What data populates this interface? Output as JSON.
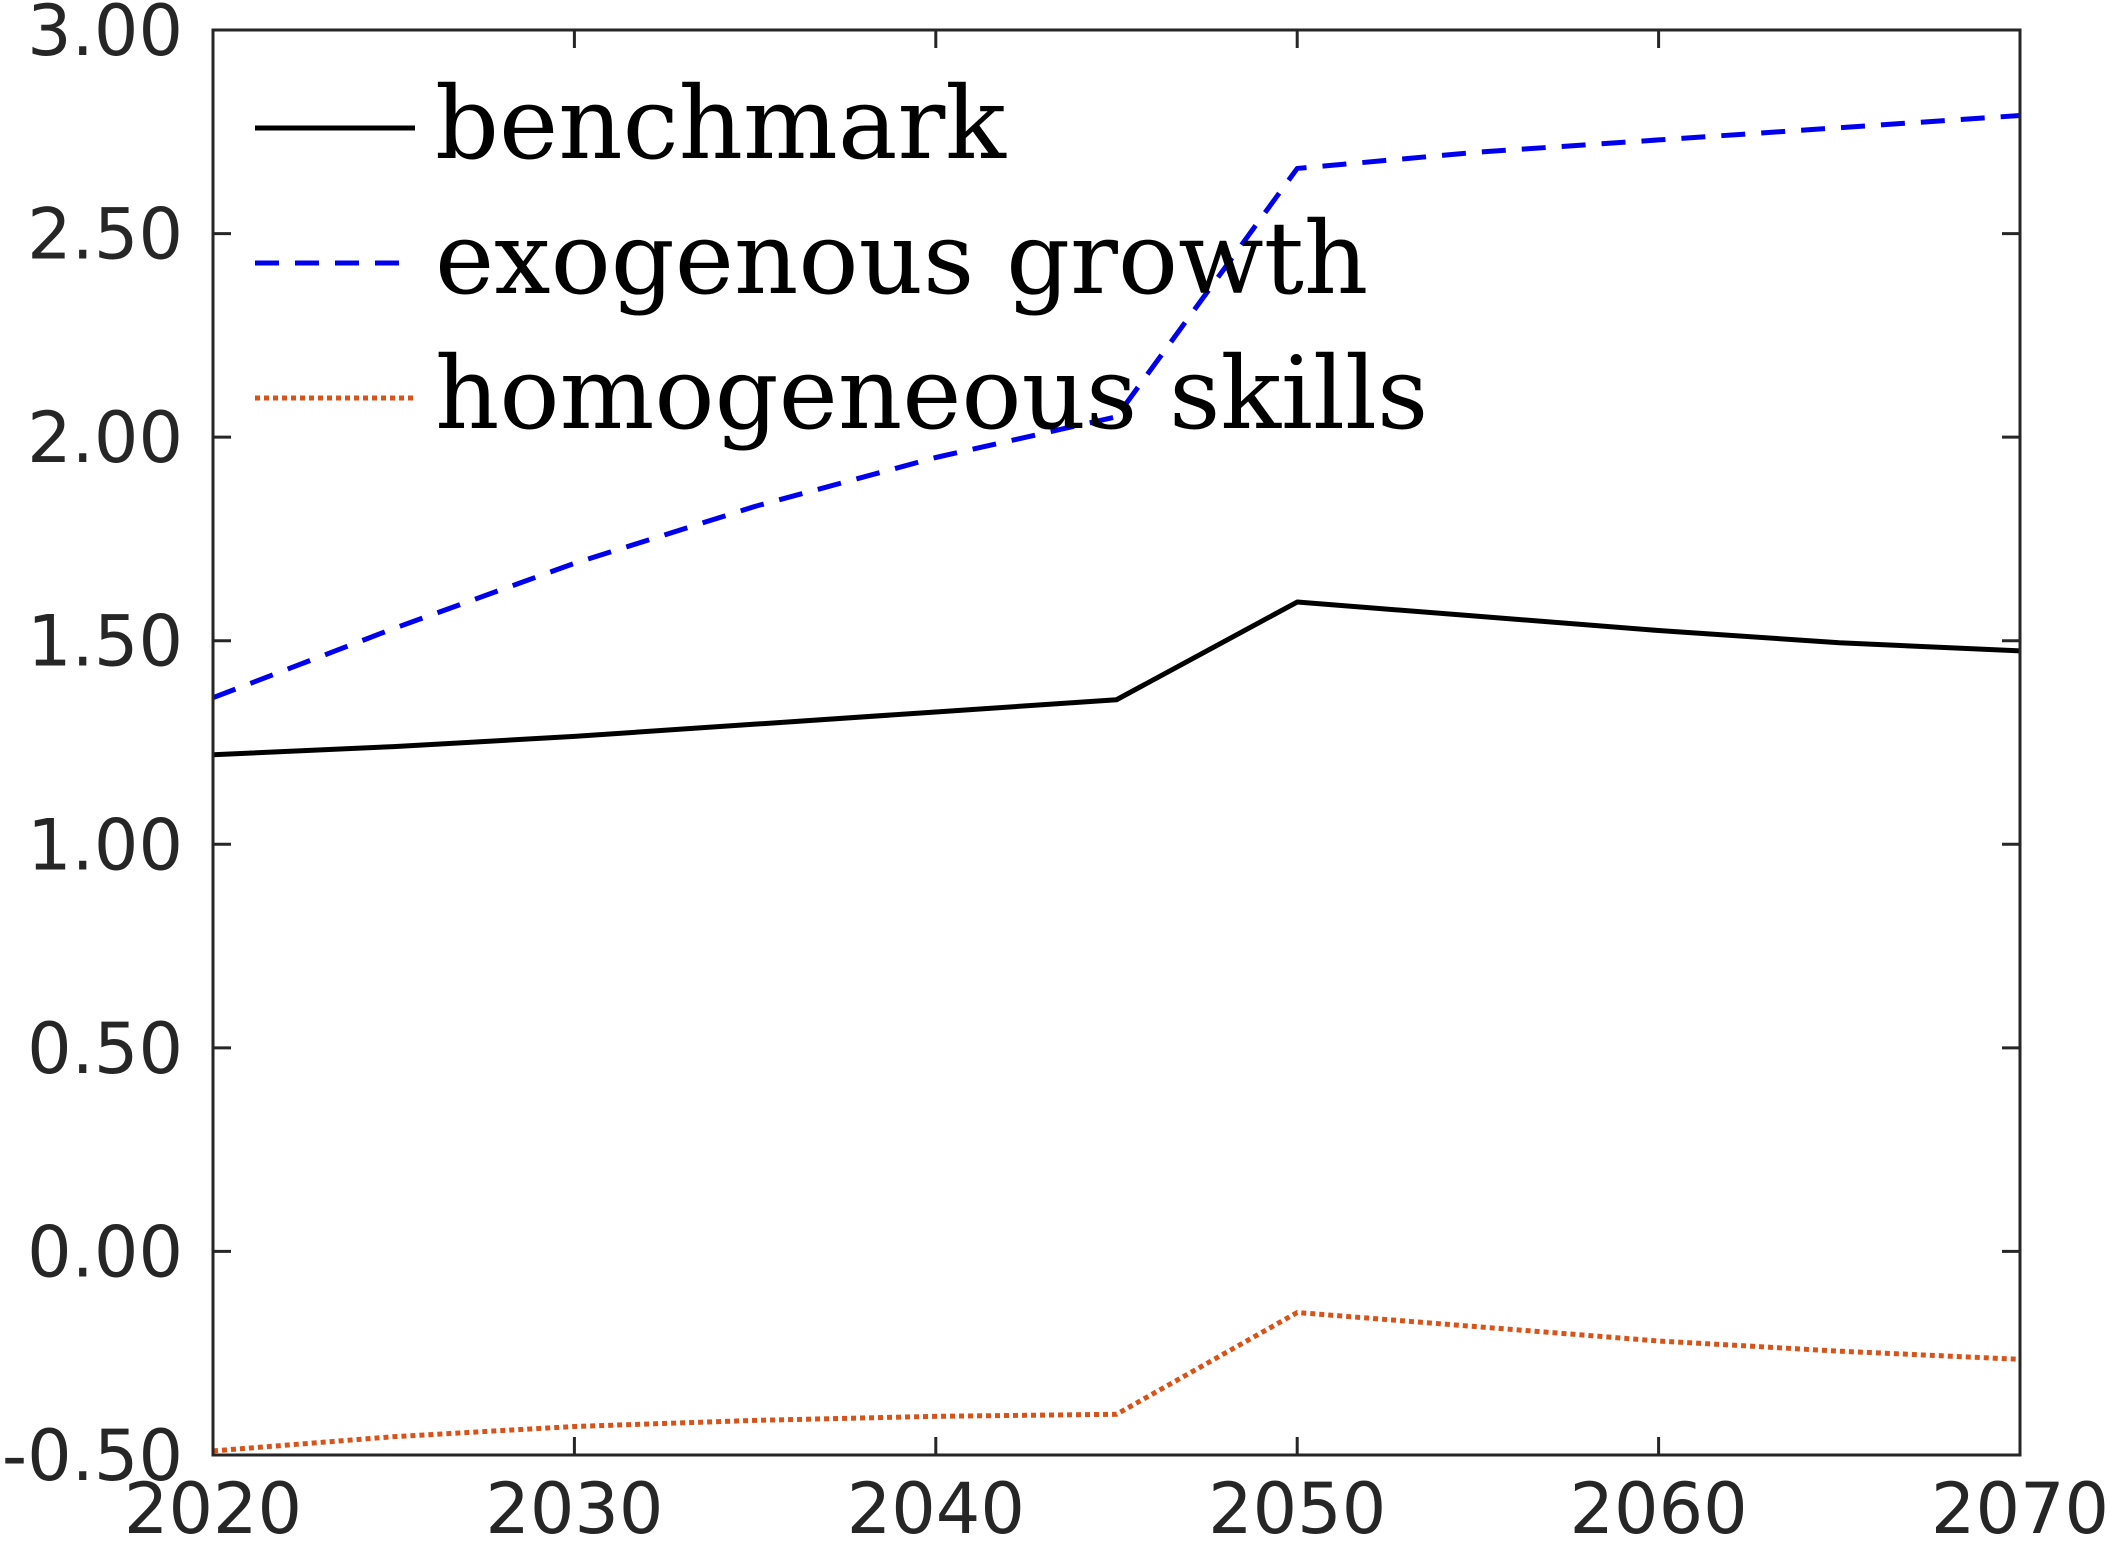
{
  "chart_data": {
    "type": "line",
    "title": "",
    "xlabel": "",
    "ylabel": "",
    "x": [
      2020,
      2025,
      2030,
      2035,
      2040,
      2045,
      2050,
      2055,
      2060,
      2065,
      2070
    ],
    "xlim": [
      2020,
      2070
    ],
    "ylim": [
      -0.5,
      3.0
    ],
    "xticks": [
      "2020",
      "2030",
      "2040",
      "2050",
      "2060",
      "2070"
    ],
    "yticks": [
      "-0.50",
      "0.00",
      "0.50",
      "1.00",
      "1.50",
      "2.00",
      "2.50",
      "3.00"
    ],
    "grid": false,
    "legend_position": "top-left",
    "series": [
      {
        "name": "benchmark",
        "color": "#000000",
        "style": "solid",
        "values": [
          1.22,
          1.24,
          1.265,
          1.295,
          1.325,
          1.355,
          1.595,
          1.56,
          1.525,
          1.495,
          1.475
        ]
      },
      {
        "name": "exogenous growth",
        "color": "#0000ee",
        "style": "dashed",
        "values": [
          1.36,
          1.53,
          1.69,
          1.83,
          1.95,
          2.05,
          2.66,
          2.7,
          2.73,
          2.76,
          2.79
        ]
      },
      {
        "name": "homogeneous skills",
        "color": "#d95319",
        "style": "dotted",
        "values": [
          -0.49,
          -0.455,
          -0.43,
          -0.415,
          -0.405,
          -0.4,
          -0.15,
          -0.185,
          -0.22,
          -0.245,
          -0.265
        ]
      }
    ]
  }
}
